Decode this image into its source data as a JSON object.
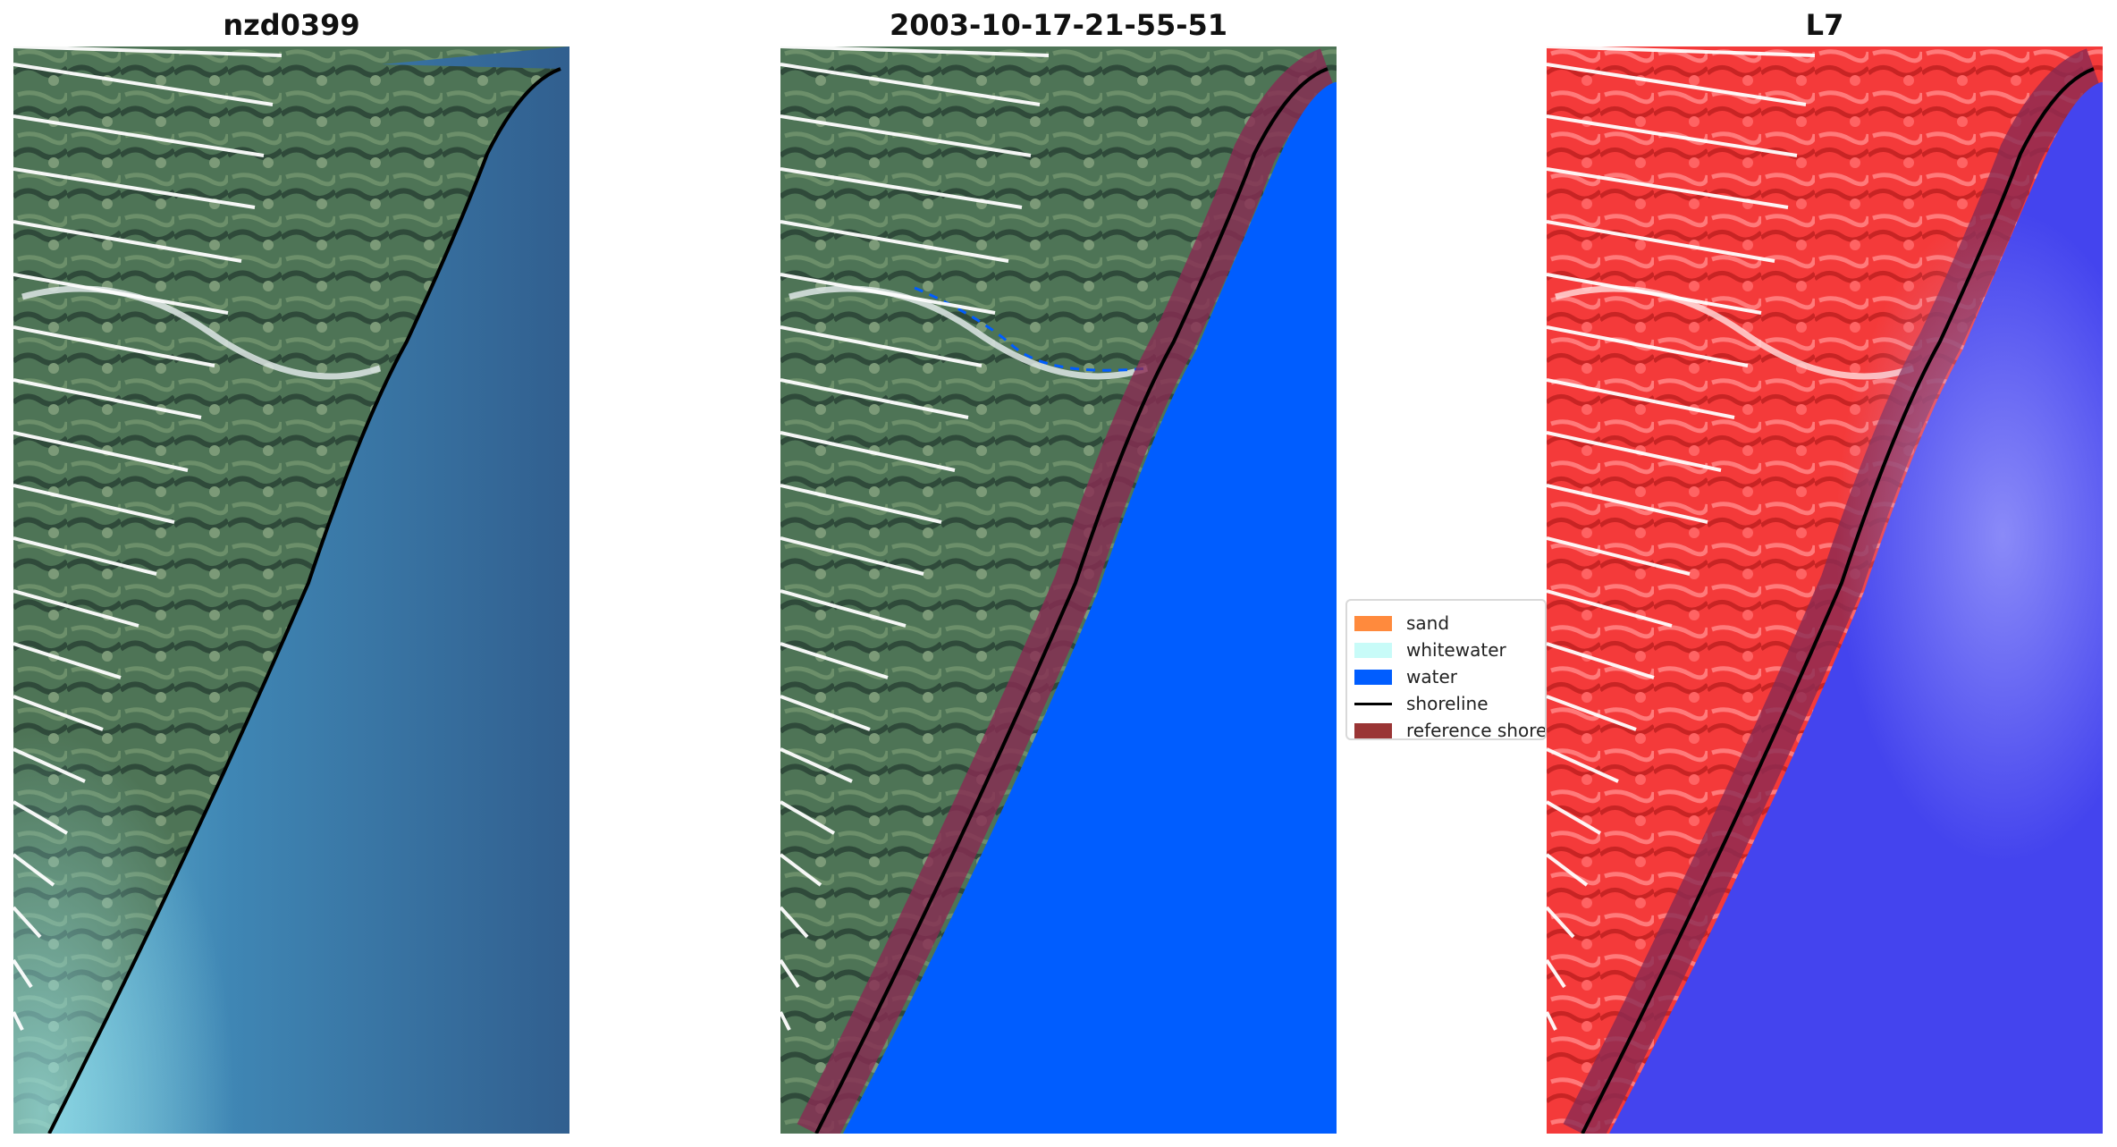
{
  "panels": [
    {
      "title": "nzd0399"
    },
    {
      "title": "2003-10-17-21-55-51"
    },
    {
      "title": "L7"
    }
  ],
  "legend": {
    "items": [
      {
        "label": "sand",
        "color": "#ff8a3d",
        "kind": "patch"
      },
      {
        "label": "whitewater",
        "color": "#c8fbf8",
        "kind": "patch"
      },
      {
        "label": "water",
        "color": "#005dff",
        "kind": "patch"
      },
      {
        "label": "shoreline",
        "color": "#000000",
        "kind": "line"
      },
      {
        "label": "reference shoreline",
        "color": "#9a3535",
        "kind": "patch"
      }
    ]
  },
  "colors": {
    "rgb_land": "#4e7456",
    "rgb_sea": "#3f78a6",
    "classified_water": "#005dff",
    "reference_buffer": "#8a2b52",
    "false_color_land": "#f43a3a",
    "false_color_sea": "#4444ee",
    "shoreline": "#000000",
    "scan_line_gaps": "#ffffff"
  }
}
